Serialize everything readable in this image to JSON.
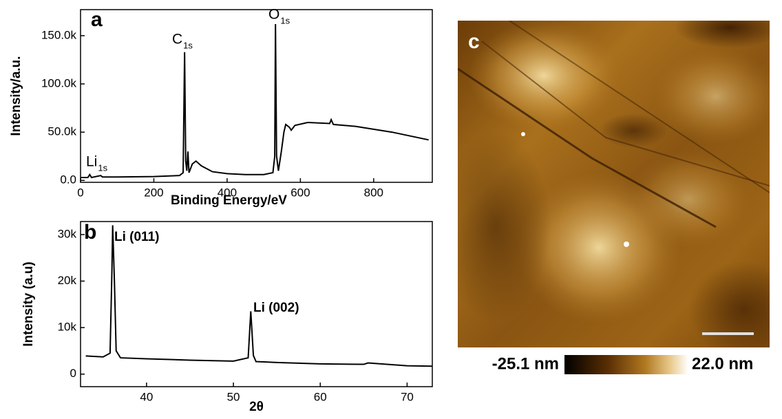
{
  "chart_data": [
    {
      "type": "line",
      "panel_label": "a",
      "xlabel": "Binding Energy/eV",
      "ylabel": "Intensity/a.u.",
      "x": [
        0,
        20,
        25,
        30,
        55,
        60,
        100,
        200,
        270,
        280,
        284,
        287,
        290,
        293,
        296,
        305,
        315,
        330,
        360,
        400,
        450,
        500,
        525,
        530,
        532,
        535,
        540,
        548,
        555,
        560,
        570,
        575,
        585,
        620,
        680,
        684,
        690,
        750,
        800,
        850,
        900,
        950
      ],
      "series": [
        {
          "color": "#000000",
          "values": [
            3000,
            3000,
            6000,
            3000,
            5000,
            3500,
            3500,
            4000,
            5000,
            8000,
            133000,
            20000,
            10000,
            30000,
            8000,
            17000,
            20000,
            15000,
            9000,
            7000,
            6000,
            6000,
            8000,
            25000,
            162000,
            25000,
            10000,
            30000,
            50000,
            58000,
            55000,
            52000,
            57000,
            60000,
            59000,
            63000,
            58000,
            56000,
            53000,
            50000,
            46000,
            42000
          ]
        }
      ],
      "xlim": [
        0,
        960
      ],
      "ylim": [
        -2000,
        177000
      ],
      "xticks": [
        0,
        200,
        400,
        600,
        800
      ],
      "yticks": [
        {
          "value": 0,
          "label": "0.0"
        },
        {
          "value": 50000,
          "label": "50.0k"
        },
        {
          "value": 100000,
          "label": "100.0k"
        },
        {
          "value": 150000,
          "label": "150.0k"
        }
      ],
      "annotations": [
        {
          "text": "C",
          "sub": "1s"
        },
        {
          "text": "O",
          "sub": "1s"
        },
        {
          "text": "Li",
          "sub": "1s"
        }
      ]
    },
    {
      "type": "line",
      "panel_label": "b",
      "xlabel": "2θ",
      "ylabel": "Intensity (a.u)",
      "x": [
        33,
        35,
        35.8,
        36.0,
        36.1,
        36.3,
        36.5,
        37,
        40,
        45,
        50,
        51.7,
        52.0,
        52.3,
        52.6,
        55,
        60,
        65,
        65.5,
        70,
        72.9
      ],
      "series": [
        {
          "color": "#000000",
          "values": [
            3900,
            3700,
            4500,
            21000,
            32000,
            20000,
            5000,
            3500,
            3300,
            3000,
            2800,
            3500,
            13500,
            4000,
            2700,
            2500,
            2200,
            2100,
            2400,
            1800,
            1700
          ]
        }
      ],
      "xlim": [
        32.4,
        72.9
      ],
      "ylim": [
        -2700,
        32800
      ],
      "xticks": [
        40,
        50,
        60,
        70
      ],
      "yticks": [
        0,
        {
          "value": 10000,
          "label": "10k"
        },
        {
          "value": 20000,
          "label": "20k"
        },
        {
          "value": 30000,
          "label": "30k"
        }
      ],
      "annotations": [
        {
          "text": "Li (011)"
        },
        {
          "text": "Li (002)"
        }
      ]
    }
  ],
  "afm_image": {
    "panel_label": "c",
    "colorbar_labels": [
      "-25.1 nm",
      "22.0 nm"
    ]
  }
}
